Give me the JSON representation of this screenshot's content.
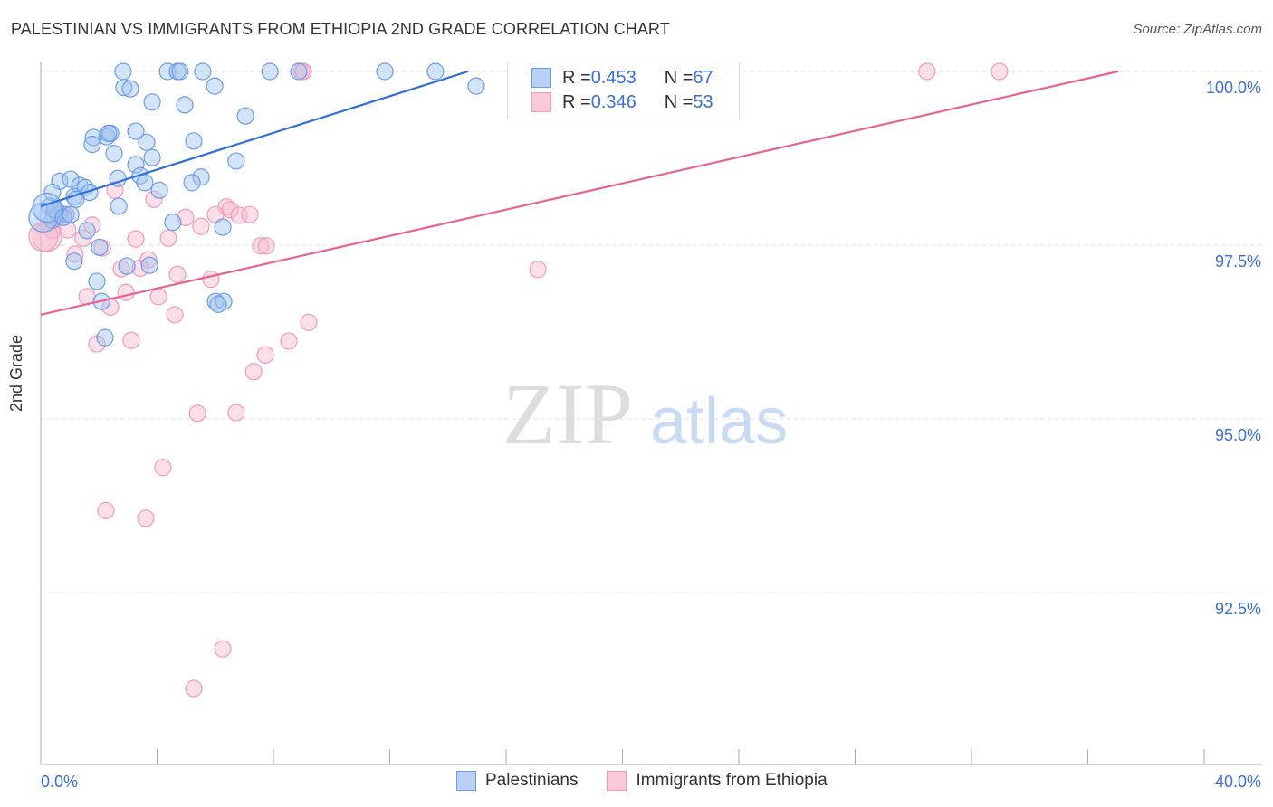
{
  "title": "PALESTINIAN VS IMMIGRANTS FROM ETHIOPIA 2ND GRADE CORRELATION CHART",
  "source": "Source: ZipAtlas.com",
  "watermark": "ZIPatlas",
  "chart_data": {
    "type": "scatter",
    "xlabel": "",
    "ylabel": "2nd Grade",
    "xlim": [
      0,
      40
    ],
    "ylim": [
      90.0,
      100.14
    ],
    "x_tick_labels": [
      "0.0%",
      "40.0%"
    ],
    "y_ticks": [
      100,
      97.5,
      95,
      92.5
    ],
    "y_tick_labels": [
      "100.0%",
      "97.5%",
      "95.0%",
      "92.5%"
    ],
    "grid": true,
    "legend_placement": "bottom",
    "colors": {
      "Palestinians": "#6b9be8",
      "Immigrants from Ethiopia": "#f29bb6",
      "blue_line": "#2f6fd6",
      "pink_line": "#e8648f"
    },
    "legend_stats": [
      {
        "r_label": "R = ",
        "r": "0.453",
        "n_label": "N = ",
        "n": "67"
      },
      {
        "r_label": "R = ",
        "r": "0.346",
        "n_label": "N = ",
        "n": "53"
      }
    ],
    "series": [
      {
        "name": "Palestinians",
        "trend": [
          [
            0,
            98.06
          ],
          [
            14.69,
            100
          ]
        ],
        "points": [
          [
            2.83,
            100
          ],
          [
            4.36,
            100
          ],
          [
            4.7,
            100
          ],
          [
            4.79,
            100
          ],
          [
            5.57,
            100
          ],
          [
            7.88,
            100
          ],
          [
            8.87,
            100
          ],
          [
            11.83,
            100
          ],
          [
            13.57,
            100
          ],
          [
            16.96,
            100
          ],
          [
            2.86,
            99.77
          ],
          [
            3.08,
            99.75
          ],
          [
            5.98,
            99.79
          ],
          [
            14.97,
            99.79
          ],
          [
            3.83,
            99.56
          ],
          [
            4.95,
            99.52
          ],
          [
            7.04,
            99.36
          ],
          [
            2.27,
            99.06
          ],
          [
            1.81,
            99.05
          ],
          [
            2.4,
            99.11
          ],
          [
            2.33,
            99.11
          ],
          [
            3.27,
            99.14
          ],
          [
            3.64,
            98.98
          ],
          [
            5.26,
            99.0
          ],
          [
            1.77,
            98.95
          ],
          [
            2.52,
            98.82
          ],
          [
            3.83,
            98.76
          ],
          [
            6.72,
            98.71
          ],
          [
            3.27,
            98.66
          ],
          [
            0.65,
            98.42
          ],
          [
            1.03,
            98.45
          ],
          [
            2.65,
            98.46
          ],
          [
            3.42,
            98.5
          ],
          [
            3.58,
            98.4
          ],
          [
            5.51,
            98.48
          ],
          [
            5.2,
            98.4
          ],
          [
            0.4,
            98.26
          ],
          [
            1.34,
            98.36
          ],
          [
            1.53,
            98.33
          ],
          [
            1.68,
            98.26
          ],
          [
            1.15,
            98.2
          ],
          [
            1.21,
            98.16
          ],
          [
            4.08,
            98.29
          ],
          [
            0.31,
            98.06
          ],
          [
            0.53,
            98.01
          ],
          [
            2.68,
            98.06
          ],
          [
            0.62,
            97.94
          ],
          [
            0.87,
            97.94
          ],
          [
            0.4,
            97.86
          ],
          [
            0.09,
            97.9
          ],
          [
            4.54,
            97.83
          ],
          [
            6.26,
            97.76
          ],
          [
            1.59,
            97.71
          ],
          [
            2.02,
            97.47
          ],
          [
            1.15,
            97.27
          ],
          [
            2.96,
            97.2
          ],
          [
            3.74,
            97.21
          ],
          [
            1.93,
            96.98
          ],
          [
            2.09,
            96.69
          ],
          [
            6.01,
            96.69
          ],
          [
            6.29,
            96.69
          ],
          [
            6.1,
            96.65
          ],
          [
            2.21,
            96.17
          ],
          [
            0.47,
            98.01
          ],
          [
            0.22,
            98.04
          ],
          [
            0.78,
            97.9
          ],
          [
            1.03,
            97.94
          ]
        ]
      },
      {
        "name": "Immigrants from Ethiopia",
        "trend": [
          [
            0,
            96.5
          ],
          [
            37.04,
            100
          ]
        ],
        "points": [
          [
            8.97,
            100
          ],
          [
            9.03,
            100
          ],
          [
            30.47,
            100
          ],
          [
            32.96,
            100
          ],
          [
            23.28,
            100
          ],
          [
            2.55,
            98.29
          ],
          [
            3.89,
            98.16
          ],
          [
            6.38,
            98.05
          ],
          [
            6.51,
            98.01
          ],
          [
            6.01,
            97.94
          ],
          [
            6.82,
            97.93
          ],
          [
            7.19,
            97.94
          ],
          [
            4.98,
            97.9
          ],
          [
            5.51,
            97.77
          ],
          [
            4.39,
            97.6
          ],
          [
            3.27,
            97.59
          ],
          [
            1.77,
            97.79
          ],
          [
            0.93,
            97.72
          ],
          [
            1.46,
            97.6
          ],
          [
            0.4,
            97.71
          ],
          [
            0.22,
            97.62
          ],
          [
            0.09,
            97.62
          ],
          [
            2.12,
            97.46
          ],
          [
            1.18,
            97.37
          ],
          [
            7.56,
            97.49
          ],
          [
            7.75,
            97.49
          ],
          [
            4.7,
            97.08
          ],
          [
            2.77,
            97.16
          ],
          [
            3.42,
            97.17
          ],
          [
            3.7,
            97.29
          ],
          [
            5.85,
            97.01
          ],
          [
            17.09,
            97.15
          ],
          [
            2.93,
            96.82
          ],
          [
            1.59,
            96.76
          ],
          [
            2.4,
            96.61
          ],
          [
            4.05,
            96.76
          ],
          [
            4.61,
            96.5
          ],
          [
            9.21,
            96.39
          ],
          [
            8.53,
            96.12
          ],
          [
            7.72,
            95.92
          ],
          [
            7.32,
            95.68
          ],
          [
            3.11,
            96.13
          ],
          [
            1.93,
            96.08
          ],
          [
            5.39,
            95.08
          ],
          [
            6.72,
            95.09
          ],
          [
            4.2,
            94.3
          ],
          [
            2.24,
            93.68
          ],
          [
            3.61,
            93.57
          ],
          [
            6.26,
            91.69
          ],
          [
            5.26,
            91.12
          ],
          [
            0.47,
            97.9
          ],
          [
            0.78,
            97.94
          ],
          [
            0.65,
            97.95
          ]
        ]
      }
    ]
  }
}
